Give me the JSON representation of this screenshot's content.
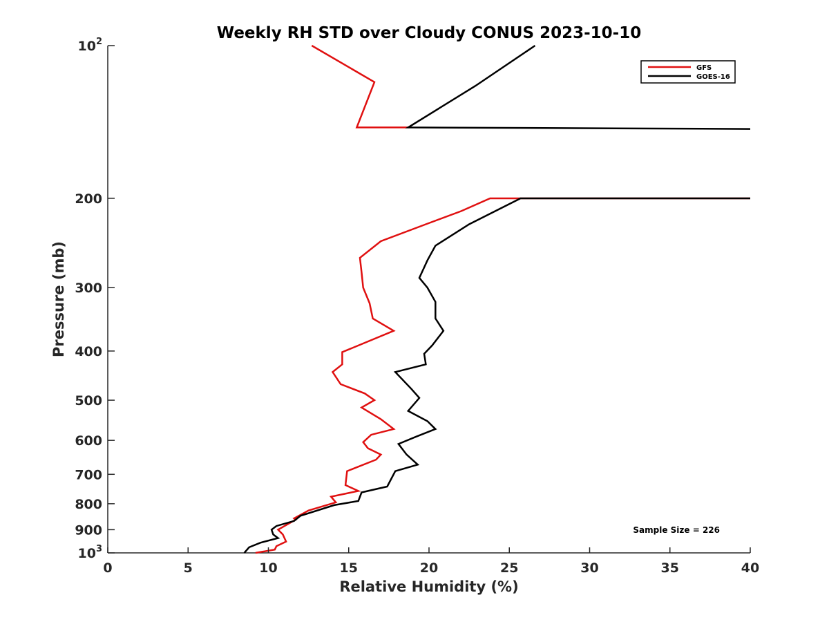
{
  "chart_data": {
    "type": "line",
    "title": "Weekly RH STD over Cloudy CONUS 2023-10-10",
    "xlabel": "Relative Humidity (%)",
    "ylabel": "Pressure (mb)",
    "xlim": [
      0,
      40
    ],
    "ylim": [
      1000,
      100
    ],
    "yscale": "log",
    "y_reversed": true,
    "grid": false,
    "legend_position": "top-right",
    "x_ticks": [
      "0",
      "5",
      "10",
      "15",
      "20",
      "25",
      "30",
      "35",
      "40"
    ],
    "y_ticks": [
      {
        "value": 100,
        "base": "10",
        "exp": "2"
      },
      {
        "value": 200,
        "label": "200"
      },
      {
        "value": 300,
        "label": "300"
      },
      {
        "value": 400,
        "label": "400"
      },
      {
        "value": 500,
        "label": "500"
      },
      {
        "value": 600,
        "label": "600"
      },
      {
        "value": 700,
        "label": "700"
      },
      {
        "value": 800,
        "label": "800"
      },
      {
        "value": 900,
        "label": "900"
      },
      {
        "value": 1000,
        "base": "10",
        "exp": "3"
      }
    ],
    "annotation": "Sample Size = 226",
    "series": [
      {
        "name": "GFS",
        "color": "#e01010",
        "segments": [
          [
            [
              12.7,
              100
            ],
            [
              16.6,
              118
            ],
            [
              15.5,
              145
            ],
            [
              18.8,
              145
            ]
          ],
          [
            [
              40.0,
              200
            ],
            [
              23.8,
              200
            ],
            [
              22.0,
              212
            ],
            [
              19.8,
              225
            ],
            [
              17.0,
              243
            ],
            [
              15.7,
              262
            ],
            [
              15.8,
              280
            ],
            [
              15.9,
              300
            ],
            [
              16.3,
              322
            ],
            [
              16.5,
              345
            ],
            [
              17.8,
              365
            ],
            [
              14.6,
              402
            ],
            [
              14.6,
              425
            ],
            [
              14.0,
              440
            ],
            [
              14.5,
              465
            ],
            [
              16.0,
              485
            ],
            [
              16.6,
              500
            ],
            [
              15.8,
              517
            ],
            [
              17.0,
              545
            ],
            [
              17.8,
              570
            ],
            [
              16.4,
              585
            ],
            [
              15.9,
              605
            ],
            [
              16.2,
              622
            ],
            [
              17.0,
              640
            ],
            [
              16.7,
              655
            ],
            [
              14.9,
              690
            ],
            [
              14.8,
              735
            ],
            [
              15.6,
              755
            ],
            [
              13.9,
              775
            ],
            [
              14.2,
              795
            ],
            [
              12.5,
              825
            ],
            [
              11.6,
              855
            ],
            [
              11.7,
              860
            ],
            [
              10.6,
              900
            ],
            [
              10.9,
              920
            ],
            [
              11.1,
              950
            ],
            [
              10.5,
              970
            ],
            [
              10.4,
              985
            ],
            [
              9.2,
              1000
            ]
          ]
        ]
      },
      {
        "name": "GOES-16",
        "color": "#000000",
        "segments": [
          [
            [
              26.6,
              100
            ],
            [
              22.9,
              120
            ],
            [
              18.7,
              145
            ],
            [
              40.0,
              146
            ]
          ],
          [
            [
              40.0,
              200
            ],
            [
              25.7,
              200
            ],
            [
              22.5,
              225
            ],
            [
              20.4,
              248
            ],
            [
              19.9,
              265
            ],
            [
              19.4,
              287
            ],
            [
              19.9,
              300
            ],
            [
              20.4,
              320
            ],
            [
              20.4,
              345
            ],
            [
              20.9,
              365
            ],
            [
              20.2,
              390
            ],
            [
              19.7,
              405
            ],
            [
              19.8,
              425
            ],
            [
              17.9,
              440
            ],
            [
              18.9,
              475
            ],
            [
              19.4,
              495
            ],
            [
              18.7,
              525
            ],
            [
              19.9,
              550
            ],
            [
              20.4,
              570
            ],
            [
              19.2,
              590
            ],
            [
              18.1,
              610
            ],
            [
              18.6,
              640
            ],
            [
              19.3,
              670
            ],
            [
              17.9,
              690
            ],
            [
              17.4,
              740
            ],
            [
              15.8,
              760
            ],
            [
              15.6,
              790
            ],
            [
              14.1,
              805
            ],
            [
              12.0,
              845
            ],
            [
              11.6,
              865
            ],
            [
              10.5,
              885
            ],
            [
              10.2,
              900
            ],
            [
              10.3,
              920
            ],
            [
              10.6,
              935
            ],
            [
              9.5,
              955
            ],
            [
              8.8,
              975
            ],
            [
              8.5,
              1000
            ]
          ]
        ]
      }
    ]
  }
}
